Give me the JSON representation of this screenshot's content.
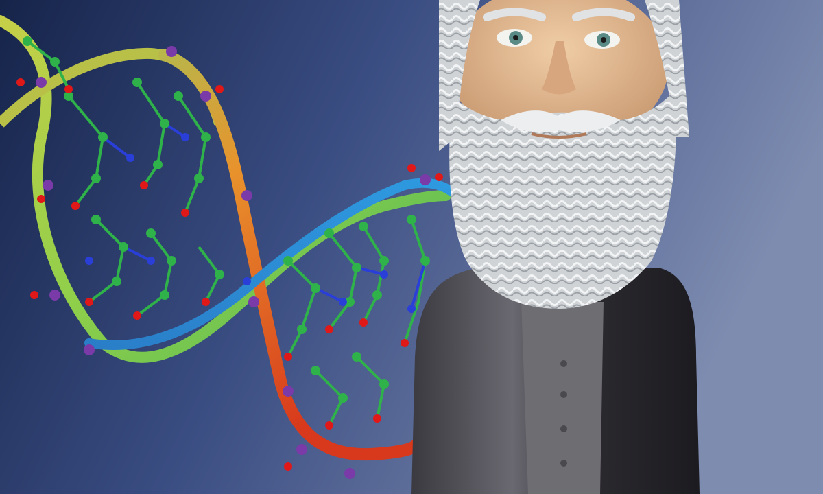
{
  "scene": {
    "subjects": [
      {
        "name": "dna-double-helix-model",
        "icon": "dna-helix-icon"
      },
      {
        "name": "bearded-man-bobblehead-figurine",
        "icon": "bobblehead-icon"
      }
    ]
  },
  "colors": {
    "background_dark": "#1b2a52",
    "background_mid": "#3e5186",
    "background_light": "#7988ad",
    "backbone_green": "#8fcf4a",
    "backbone_yellow": "#c9c24a",
    "backbone_orange": "#e88a2a",
    "backbone_red": "#d8401e",
    "backbone_blue": "#2a8fd6",
    "atom_carbon": "#2fb24a",
    "atom_oxygen": "#e01818",
    "atom_nitrogen": "#2a3fd8",
    "atom_phosphorus": "#7a3aa8",
    "beard_white": "#d9dde0",
    "skin": "#e2b890",
    "coat_dark": "#2a2a2e",
    "shirt_gray": "#6e6d72"
  }
}
